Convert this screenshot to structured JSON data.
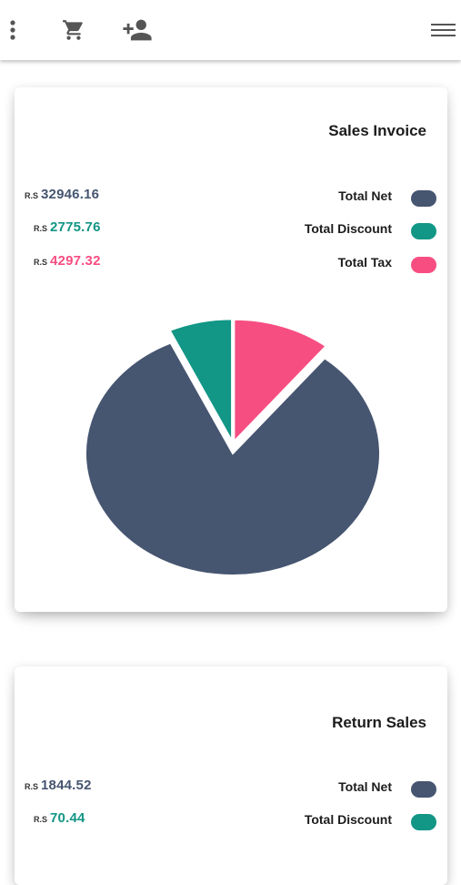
{
  "toolbar": {
    "icons": [
      "more-vertical-icon",
      "cart-icon",
      "add-person-icon",
      "menu-icon"
    ]
  },
  "sales_invoice": {
    "title": "Sales Invoice",
    "rows": [
      {
        "currency": "R.S",
        "value": "32946.16",
        "label": "Total Net",
        "color": "#465570"
      },
      {
        "currency": "R.S",
        "value": "2775.76",
        "label": "Total Discount",
        "color": "#129685"
      },
      {
        "currency": "R.S",
        "value": "4297.32",
        "label": "Total Tax",
        "color": "#f74e82"
      }
    ]
  },
  "chart_data": {
    "type": "pie",
    "title": "Sales Invoice",
    "categories": [
      "Total Net",
      "Total Discount",
      "Total Tax"
    ],
    "values": [
      32946.16,
      2775.76,
      4297.32
    ],
    "colors": [
      "#465570",
      "#129685",
      "#f74e82"
    ],
    "legend": "top-right"
  },
  "return_sales": {
    "title": "Return Sales",
    "rows": [
      {
        "currency": "R.S",
        "value": "1844.52",
        "label": "Total Net",
        "color": "#465570"
      },
      {
        "currency": "R.S",
        "value": "70.44",
        "label": "Total Discount",
        "color": "#129685"
      }
    ]
  }
}
